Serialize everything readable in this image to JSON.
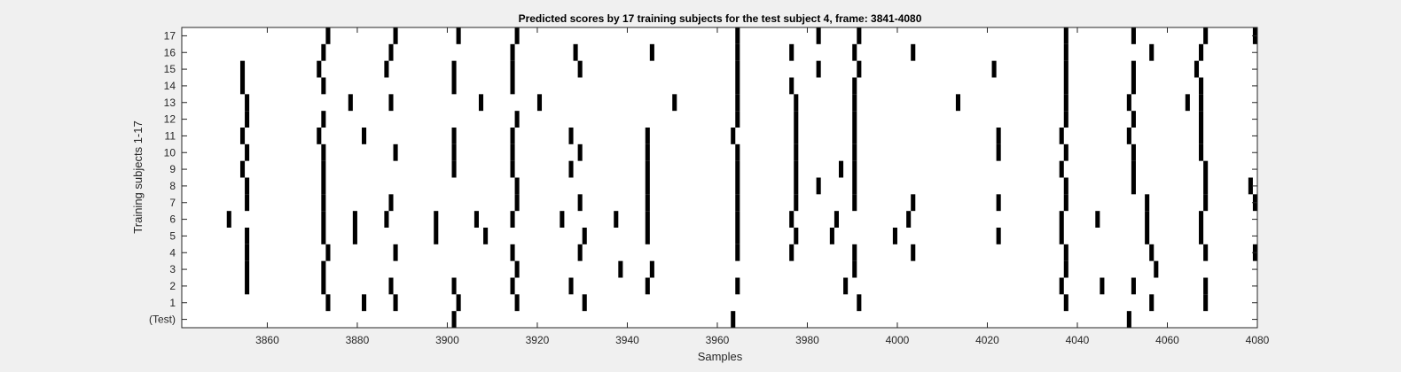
{
  "figure": {
    "background": "#f0f0f0",
    "plot_background": "#ffffff",
    "axis_color": "#262626",
    "mark_color": "#000000"
  },
  "chart_data": {
    "type": "heatmap",
    "title": "Predicted scores by 17 training subjects for the test subject 4, frame: 3841-4080",
    "xlabel": "Samples",
    "ylabel": "Training subjects 1-17",
    "xlim": [
      3841,
      4080
    ],
    "x_ticks": [
      3860,
      3880,
      3900,
      3920,
      3940,
      3960,
      3980,
      4000,
      4020,
      4040,
      4060,
      4080
    ],
    "y_tick_labels": [
      "(Test)",
      "1",
      "2",
      "3",
      "4",
      "5",
      "6",
      "7",
      "8",
      "9",
      "10",
      "11",
      "12",
      "13",
      "14",
      "15",
      "16",
      "17"
    ],
    "grid": false,
    "legend": "none",
    "rows": [
      {
        "label": "(Test)",
        "events": [
          3902,
          3964,
          4052
        ]
      },
      {
        "label": "1",
        "events": [
          3874,
          3882,
          3889,
          3903,
          3916,
          3931,
          3992,
          4038,
          4057,
          4069
        ]
      },
      {
        "label": "2",
        "events": [
          3856,
          3873,
          3888,
          3902,
          3915,
          3928,
          3945,
          3965,
          3989,
          4037,
          4046,
          4053,
          4069
        ]
      },
      {
        "label": "3",
        "events": [
          3856,
          3873,
          3916,
          3939,
          3946,
          3991,
          4038,
          4058
        ]
      },
      {
        "label": "4",
        "events": [
          3856,
          3874,
          3889,
          3915,
          3930,
          3965,
          3977,
          3991,
          4004,
          4038,
          4057,
          4069,
          4080
        ]
      },
      {
        "label": "5",
        "events": [
          3856,
          3873,
          3880,
          3898,
          3909,
          3931,
          3945,
          3965,
          3978,
          3986,
          4000,
          4023,
          4037,
          4056,
          4068
        ]
      },
      {
        "label": "6",
        "events": [
          3852,
          3873,
          3880,
          3887,
          3898,
          3907,
          3915,
          3926,
          3938,
          3945,
          3965,
          3977,
          3987,
          4003,
          4037,
          4045,
          4056,
          4068
        ]
      },
      {
        "label": "7",
        "events": [
          3856,
          3873,
          3888,
          3916,
          3930,
          3945,
          3965,
          3978,
          3991,
          4004,
          4023,
          4038,
          4056,
          4069,
          4080
        ]
      },
      {
        "label": "8",
        "events": [
          3856,
          3873,
          3916,
          3945,
          3965,
          3978,
          3983,
          3991,
          4038,
          4053,
          4069,
          4079
        ]
      },
      {
        "label": "9",
        "events": [
          3855,
          3873,
          3902,
          3915,
          3928,
          3945,
          3965,
          3978,
          3988,
          3991,
          4037,
          4053,
          4069
        ]
      },
      {
        "label": "10",
        "events": [
          3856,
          3873,
          3889,
          3902,
          3915,
          3930,
          3945,
          3965,
          3978,
          3991,
          4023,
          4038,
          4053,
          4068
        ]
      },
      {
        "label": "11",
        "events": [
          3855,
          3872,
          3882,
          3902,
          3915,
          3928,
          3945,
          3964,
          3978,
          3991,
          4023,
          4037,
          4052,
          4068
        ]
      },
      {
        "label": "12",
        "events": [
          3856,
          3873,
          3916,
          3965,
          3978,
          3991,
          4038,
          4053,
          4068
        ]
      },
      {
        "label": "13",
        "events": [
          3856,
          3879,
          3888,
          3908,
          3921,
          3951,
          3965,
          3978,
          3991,
          4014,
          4038,
          4052,
          4065,
          4068
        ]
      },
      {
        "label": "14",
        "events": [
          3855,
          3873,
          3902,
          3915,
          3965,
          3977,
          3991,
          4038,
          4053,
          4068
        ]
      },
      {
        "label": "15",
        "events": [
          3855,
          3872,
          3887,
          3902,
          3915,
          3930,
          3965,
          3983,
          3992,
          4022,
          4038,
          4053,
          4067
        ]
      },
      {
        "label": "16",
        "events": [
          3873,
          3888,
          3915,
          3929,
          3946,
          3965,
          3977,
          3991,
          4004,
          4038,
          4057,
          4068
        ]
      },
      {
        "label": "17",
        "events": [
          3874,
          3889,
          3903,
          3916,
          3965,
          3983,
          3992,
          4038,
          4053,
          4069,
          4080
        ]
      }
    ]
  }
}
